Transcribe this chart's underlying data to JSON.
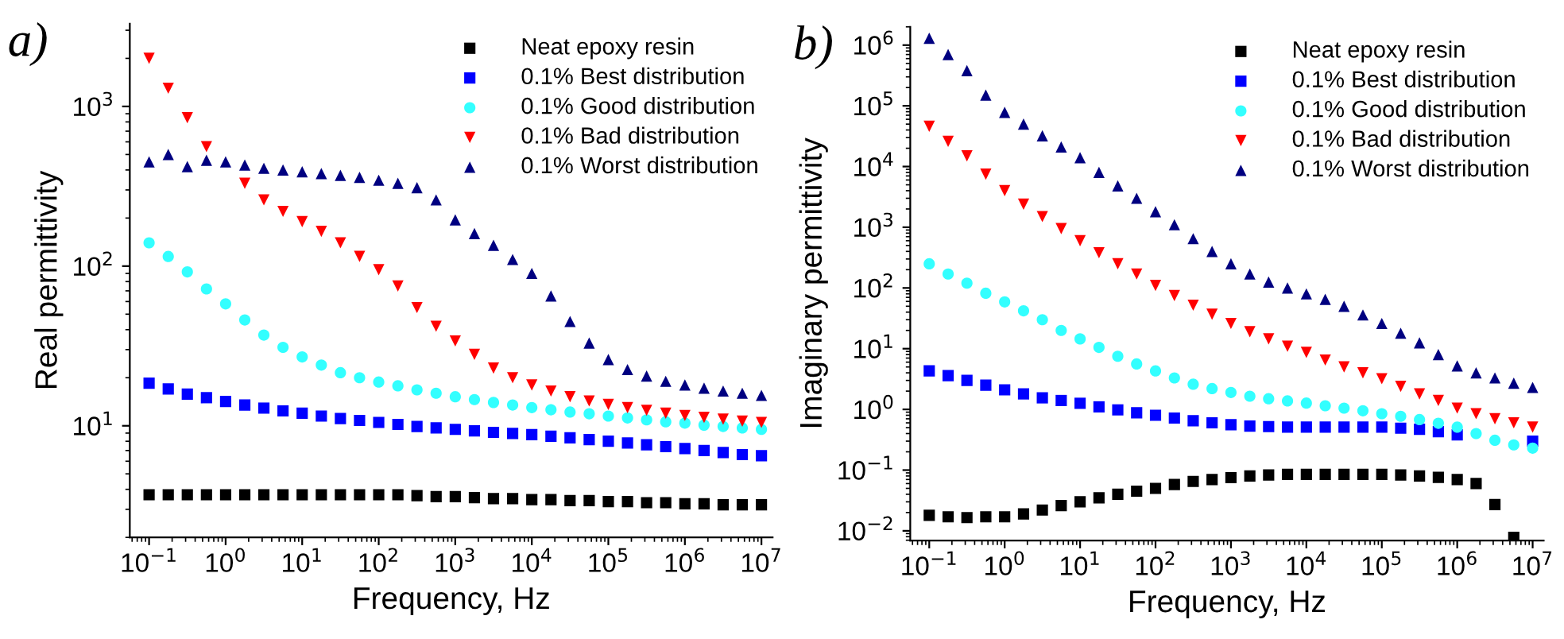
{
  "chart_data": [
    {
      "type": "scatter",
      "title": "a)",
      "xlabel": "Frequency, Hz",
      "ylabel": "Real permittivity",
      "log": "xy",
      "legend": "top right",
      "grid": false,
      "xlim": [
        0.056,
        14000000
      ],
      "ylim": [
        2,
        3300
      ],
      "xticks": [
        {
          "value": 0.1,
          "label": "10$^{−1}$"
        },
        {
          "value": 1,
          "label": "10$^{0}$"
        },
        {
          "value": 10,
          "label": "10$^{1}$"
        },
        {
          "value": 100,
          "label": "10$^{2}$"
        },
        {
          "value": 1000,
          "label": "10$^{3}$"
        },
        {
          "value": 10000,
          "label": "10$^{4}$"
        },
        {
          "value": 100000,
          "label": "10$^{5}$"
        },
        {
          "value": 1000000,
          "label": "10$^{6}$"
        },
        {
          "value": 10000000,
          "label": "10$^{7}$"
        }
      ],
      "yticks": [
        {
          "value": 10,
          "label": "10$^{1}$"
        },
        {
          "value": 100,
          "label": "10$^{2}$"
        },
        {
          "value": 1000,
          "label": "10$^{3}$"
        }
      ],
      "x": [
        0.1,
        0.178,
        0.316,
        0.562,
        1,
        1.78,
        3.16,
        5.62,
        10,
        17.8,
        31.6,
        56.2,
        100,
        178,
        316,
        562,
        1000,
        1780,
        3160,
        5620,
        10000,
        17800,
        31600,
        56200,
        100000,
        178000,
        316000,
        562000,
        1000000,
        1780000,
        3160000,
        5620000,
        10000000
      ],
      "series": [
        {
          "name": "Neat epoxy resin",
          "color": "#000000",
          "marker": "square",
          "values": [
            3.7,
            3.7,
            3.7,
            3.7,
            3.7,
            3.7,
            3.7,
            3.7,
            3.7,
            3.7,
            3.7,
            3.7,
            3.7,
            3.7,
            3.65,
            3.6,
            3.6,
            3.55,
            3.5,
            3.5,
            3.45,
            3.45,
            3.4,
            3.4,
            3.35,
            3.35,
            3.3,
            3.3,
            3.25,
            3.25,
            3.2,
            3.2,
            3.2
          ]
        },
        {
          "name": "0.1% Best distribution",
          "color": "#0000ff",
          "marker": "square",
          "values": [
            18.5,
            17,
            15.8,
            15,
            14.2,
            13.5,
            12.9,
            12.4,
            12,
            11.5,
            11.1,
            10.8,
            10.5,
            10.2,
            9.9,
            9.7,
            9.5,
            9.3,
            9.1,
            8.95,
            8.8,
            8.6,
            8.4,
            8.2,
            8,
            7.8,
            7.6,
            7.4,
            7.2,
            7,
            6.8,
            6.6,
            6.5
          ]
        },
        {
          "name": "0.1% Good distribution",
          "color": "#33ffff",
          "marker": "circle",
          "values": [
            140,
            115,
            92,
            72,
            58,
            46,
            37,
            31,
            27,
            24,
            21.5,
            20,
            18.8,
            17.8,
            16.8,
            16,
            15.2,
            14.6,
            14,
            13.5,
            13,
            12.6,
            12.2,
            11.9,
            11.5,
            11.2,
            10.9,
            10.6,
            10.4,
            10.1,
            9.9,
            9.7,
            9.5
          ]
        },
        {
          "name": "0.1% Bad distribution",
          "color": "#ff0000",
          "marker": "triangle_down",
          "values": [
            2000,
            1300,
            850,
            560,
            null,
            330,
            260,
            220,
            190,
            165,
            140,
            115,
            95,
            75,
            55,
            42,
            34,
            28,
            23,
            20,
            18,
            16.5,
            15.2,
            14.3,
            13.6,
            13,
            12.5,
            12,
            11.6,
            11.3,
            11,
            10.7,
            10.5
          ]
        },
        {
          "name": "0.1% Worst distribution",
          "color": "#000080",
          "marker": "triangle",
          "values": [
            450,
            500,
            420,
            460,
            450,
            430,
            410,
            400,
            390,
            380,
            370,
            360,
            345,
            330,
            310,
            260,
            195,
            160,
            135,
            110,
            90,
            65,
            45,
            33,
            26,
            22.5,
            20.5,
            19,
            18,
            17.2,
            16.5,
            16,
            15.5
          ]
        }
      ]
    },
    {
      "type": "scatter",
      "title": "b)",
      "xlabel": "Frequency, Hz",
      "ylabel": "Imaginary permittivity",
      "log": "xy",
      "legend": "top right",
      "grid": false,
      "xlim": [
        0.056,
        14000000
      ],
      "ylim": [
        0.0069,
        2000000
      ],
      "xticks": [
        {
          "value": 0.1,
          "label": "10$^{−1}$"
        },
        {
          "value": 1,
          "label": "10$^{0}$"
        },
        {
          "value": 10,
          "label": "10$^{1}$"
        },
        {
          "value": 100,
          "label": "10$^{2}$"
        },
        {
          "value": 1000,
          "label": "10$^{3}$"
        },
        {
          "value": 10000,
          "label": "10$^{4}$"
        },
        {
          "value": 100000,
          "label": "10$^{5}$"
        },
        {
          "value": 1000000,
          "label": "10$^{6}$"
        },
        {
          "value": 10000000,
          "label": "10$^{7}$"
        }
      ],
      "yticks": [
        {
          "value": 0.01,
          "label": "10$^{−2}$"
        },
        {
          "value": 0.1,
          "label": "10$^{−1}$"
        },
        {
          "value": 1,
          "label": "10$^{0}$"
        },
        {
          "value": 10,
          "label": "10$^{1}$"
        },
        {
          "value": 100,
          "label": "10$^{2}$"
        },
        {
          "value": 1000,
          "label": "10$^{3}$"
        },
        {
          "value": 10000,
          "label": "10$^{4}$"
        },
        {
          "value": 100000,
          "label": "10$^{5}$"
        },
        {
          "value": 1000000,
          "label": "10$^{6}$"
        }
      ],
      "x": [
        0.1,
        0.178,
        0.316,
        0.562,
        1,
        1.78,
        3.16,
        5.62,
        10,
        17.8,
        31.6,
        56.2,
        100,
        178,
        316,
        562,
        1000,
        1780,
        3160,
        5620,
        10000,
        17800,
        31600,
        56200,
        100000,
        178000,
        316000,
        562000,
        1000000,
        1780000,
        3160000,
        5620000,
        10000000
      ],
      "series": [
        {
          "name": "Neat epoxy resin",
          "color": "#000000",
          "marker": "square",
          "values": [
            0.018,
            0.017,
            0.0165,
            0.017,
            0.017,
            0.019,
            0.022,
            0.026,
            0.03,
            0.035,
            0.04,
            0.045,
            0.05,
            0.058,
            0.065,
            0.07,
            0.075,
            0.08,
            0.083,
            0.085,
            0.085,
            0.085,
            0.085,
            0.085,
            0.085,
            0.083,
            0.08,
            0.076,
            0.07,
            0.06,
            0.027,
            0.0078,
            null
          ]
        },
        {
          "name": "0.1% Best distribution",
          "color": "#0000ff",
          "marker": "square",
          "values": [
            4.3,
            3.6,
            3,
            2.5,
            2.1,
            1.8,
            1.55,
            1.4,
            1.26,
            1.1,
            0.98,
            0.88,
            0.8,
            0.72,
            0.65,
            0.6,
            0.56,
            0.53,
            0.52,
            0.51,
            0.51,
            0.51,
            0.51,
            0.51,
            0.51,
            0.49,
            0.47,
            0.43,
            0.38,
            null,
            null,
            null,
            0.3
          ]
        },
        {
          "name": "0.1% Good distribution",
          "color": "#33ffff",
          "marker": "circle",
          "values": [
            250,
            170,
            120,
            82,
            59,
            42,
            30,
            20,
            14.5,
            10.5,
            7.5,
            5.6,
            4.3,
            3.3,
            2.6,
            2.2,
            1.9,
            1.65,
            1.5,
            1.38,
            1.27,
            1.15,
            1.05,
            0.95,
            0.85,
            0.77,
            0.68,
            0.59,
            0.51,
            0.4,
            0.31,
            0.26,
            0.23
          ]
        },
        {
          "name": "0.1% Bad distribution",
          "color": "#ff0000",
          "marker": "triangle_down",
          "values": [
            46000,
            26000,
            15000,
            7500,
            4000,
            2400,
            1500,
            950,
            600,
            380,
            250,
            170,
            110,
            75,
            52,
            37,
            26,
            19,
            14.5,
            11,
            8.7,
            6.5,
            5,
            4,
            3.2,
            2.4,
            1.8,
            1.4,
            1.05,
            0.85,
            0.7,
            0.6,
            0.51
          ]
        },
        {
          "name": "0.1% Worst distribution",
          "color": "#000080",
          "marker": "triangle",
          "values": [
            1300000,
            700000,
            380000,
            150000,
            78000,
            50000,
            32000,
            21000,
            14000,
            8000,
            4800,
            3000,
            1800,
            1100,
            650,
            400,
            250,
            170,
            125,
            100,
            80,
            65,
            50,
            36,
            26,
            18,
            12.5,
            8,
            5.2,
            4,
            3.3,
            2.7,
            2.3
          ]
        }
      ]
    }
  ]
}
